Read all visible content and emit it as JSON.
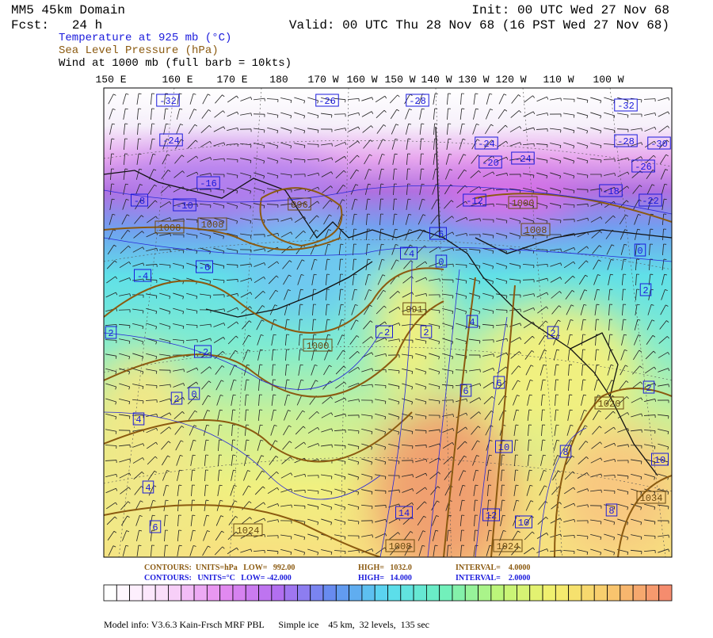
{
  "header": {
    "title": "MM5 45km Domain",
    "fcst": "Fcst:   24 h",
    "init": "Init: 00 UTC Wed 27 Nov 68",
    "valid": "Valid: 00 UTC Thu 28 Nov 68 (16 PST Wed 27 Nov 68)",
    "fields": [
      "Temperature at 925 mb (°C)",
      "Sea Level Pressure (hPa)",
      "Wind at 1000 mb (full barb = 10kts)"
    ]
  },
  "longitudes": [
    "150 E",
    "160 E",
    "170 E",
    "180",
    "170 W",
    "160 W",
    "150 W",
    "140 W",
    "130 W",
    "120 W",
    "110 W",
    "100 W"
  ],
  "temperature_labels": [
    -32,
    -26,
    -28,
    -32,
    -24,
    -24,
    -28,
    -30,
    -20,
    -24,
    -26,
    -16,
    -18,
    -12,
    -22,
    -8,
    -10,
    -6,
    -4,
    0,
    0,
    -6,
    -4,
    2,
    2,
    -2,
    2,
    4,
    2,
    -2,
    0,
    2,
    6,
    6,
    4,
    2,
    10,
    8,
    4,
    14,
    12,
    10,
    6,
    8,
    10
  ],
  "pressure_labels": [
    996,
    1008,
    1008,
    1000,
    1008,
    991,
    1000,
    1020,
    1034,
    1024,
    1008,
    1024
  ],
  "legend": {
    "pressure": [
      "CONTOURS:  UNITS=hPa   LOW=   992.00",
      "HIGH=   1032.0",
      "INTERVAL=    4.0000"
    ],
    "temperature": [
      "CONTOURS:   UNITS=°C   LOW= -42.000",
      "HIGH=   14.000",
      "INTERVAL=    2.0000"
    ]
  },
  "model_info": "Model info: V3.6.3 Kain-Frsch MRF PBL      Simple ice    45 km,  32 levels,  135 sec"
}
